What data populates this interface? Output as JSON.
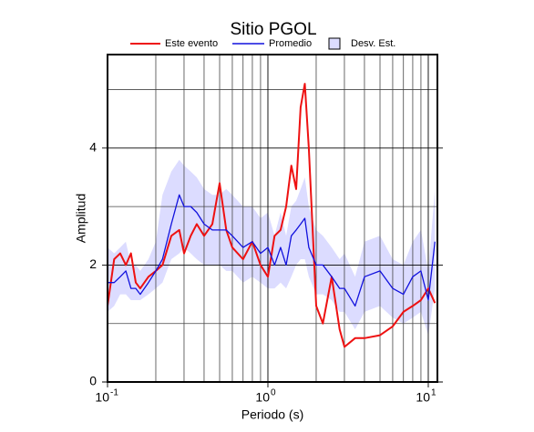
{
  "chart_data": {
    "type": "line",
    "title": "Sitio PGOL",
    "x_label": "Periodo (s)",
    "y_label": "Amplitud",
    "log_x": true,
    "grid": true,
    "xlim": [
      0.1,
      11.4
    ],
    "ylim": [
      0,
      5.6
    ],
    "xticks": [
      {
        "value": 0.1,
        "label": "10",
        "exponent": "-1"
      },
      {
        "value": 1,
        "label": "10",
        "exponent": "0"
      },
      {
        "value": 10,
        "label": "10",
        "exponent": "1"
      }
    ],
    "x_minor_ticks": [
      0.2,
      0.3,
      0.4,
      0.5,
      0.6,
      0.7,
      0.8,
      0.9,
      2,
      3,
      4,
      5,
      6,
      7,
      8,
      9
    ],
    "yticks": [
      0,
      2,
      4
    ],
    "y_minor_ticks": [
      1,
      3,
      5
    ],
    "x": [
      0.1,
      0.11,
      0.12,
      0.13,
      0.14,
      0.15,
      0.16,
      0.18,
      0.2,
      0.22,
      0.25,
      0.28,
      0.3,
      0.33,
      0.36,
      0.4,
      0.45,
      0.5,
      0.55,
      0.6,
      0.7,
      0.8,
      0.9,
      1.0,
      1.1,
      1.2,
      1.3,
      1.4,
      1.5,
      1.6,
      1.7,
      1.8,
      2.0,
      2.2,
      2.5,
      2.8,
      3.0,
      3.5,
      4,
      5,
      6,
      7,
      8,
      9,
      10,
      11
    ],
    "band": {
      "name": "Desv. Est.",
      "color": "#dcdcff",
      "border": "#000000",
      "lower": [
        1.2,
        1.3,
        1.5,
        1.5,
        1.4,
        1.4,
        1.4,
        1.5,
        1.6,
        1.7,
        2.1,
        2.2,
        2.3,
        2.2,
        2.1,
        2.0,
        2.0,
        2.0,
        1.9,
        1.9,
        1.7,
        1.8,
        1.7,
        1.6,
        1.6,
        1.7,
        1.6,
        1.8,
        2.0,
        2.1,
        2.1,
        1.8,
        1.5,
        1.5,
        1.4,
        1.2,
        1.2,
        0.9,
        1.2,
        1.3,
        1.1,
        1.0,
        1.1,
        1.2,
        0.8,
        1.6
      ],
      "upper": [
        2.3,
        2.2,
        2.3,
        2.4,
        2.0,
        2.0,
        1.9,
        2.1,
        2.4,
        3.2,
        3.6,
        3.8,
        3.7,
        3.6,
        3.5,
        3.3,
        3.2,
        3.2,
        3.3,
        3.2,
        3.0,
        3.0,
        2.8,
        2.9,
        2.5,
        2.9,
        2.5,
        3.0,
        3.1,
        3.3,
        3.5,
        3.0,
        2.6,
        2.5,
        2.3,
        2.1,
        2.2,
        1.8,
        2.4,
        2.5,
        2.1,
        2.0,
        2.4,
        2.6,
        1.9,
        3.3
      ]
    },
    "series": [
      {
        "name": "Este evento",
        "color": "#ee1111",
        "values": [
          1.3,
          2.1,
          2.2,
          2.0,
          2.2,
          1.7,
          1.6,
          1.8,
          1.9,
          2.0,
          2.5,
          2.6,
          2.2,
          2.5,
          2.7,
          2.5,
          2.7,
          3.4,
          2.6,
          2.3,
          2.1,
          2.4,
          2.0,
          1.8,
          2.5,
          2.6,
          3.0,
          3.7,
          3.3,
          4.7,
          5.1,
          4.0,
          1.3,
          1.0,
          1.8,
          0.9,
          0.6,
          0.75,
          0.75,
          0.8,
          0.95,
          1.2,
          1.3,
          1.4,
          1.6,
          1.35
        ]
      },
      {
        "name": "Promedio",
        "color": "#1111dd",
        "values": [
          1.7,
          1.7,
          1.8,
          1.9,
          1.6,
          1.6,
          1.5,
          1.7,
          1.9,
          2.1,
          2.7,
          3.2,
          3.0,
          3.0,
          2.9,
          2.7,
          2.6,
          2.6,
          2.6,
          2.5,
          2.3,
          2.4,
          2.2,
          2.3,
          2.0,
          2.3,
          2.0,
          2.5,
          2.6,
          2.7,
          2.8,
          2.3,
          2.0,
          2.0,
          1.8,
          1.6,
          1.6,
          1.3,
          1.8,
          1.9,
          1.6,
          1.5,
          1.8,
          1.9,
          1.4,
          2.4
        ]
      }
    ]
  }
}
